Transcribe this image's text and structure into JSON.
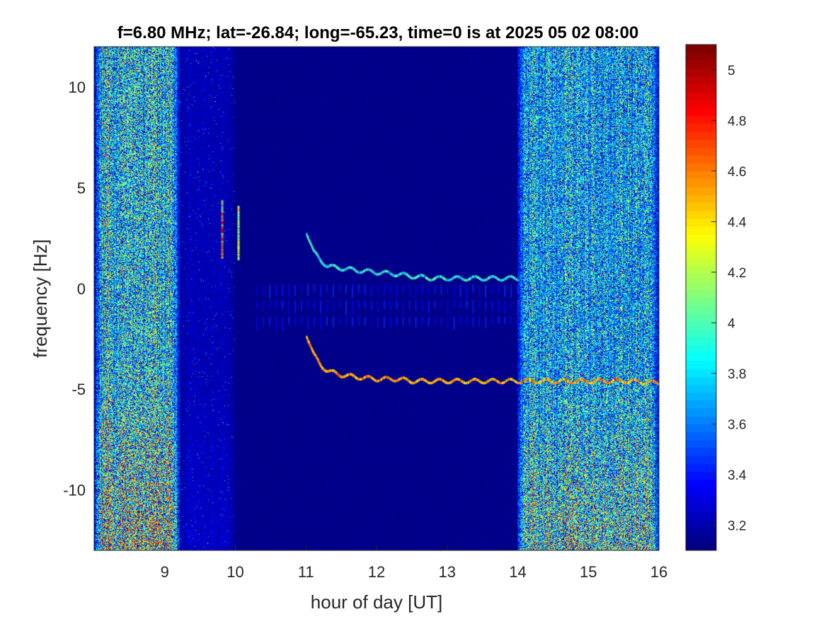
{
  "chart_data": {
    "type": "heatmap",
    "title": "f=6.80 MHz;  lat=-26.84; long=-65.23, time=0 is at 2025 05 02 08:00",
    "xlabel": "hour of day [UT]",
    "ylabel": "frequency [Hz]",
    "xlim": [
      8.0,
      16.0
    ],
    "ylim": [
      -13.0,
      12.0
    ],
    "x_ticks": [
      9,
      10,
      11,
      12,
      13,
      14,
      15,
      16
    ],
    "x_tick_labels": [
      "9",
      "10",
      "11",
      "12",
      "13",
      "14",
      "15",
      "16"
    ],
    "y_ticks": [
      10,
      5,
      0,
      -5,
      -10
    ],
    "y_tick_labels": [
      "10",
      "5",
      "0",
      "-5",
      "-10"
    ],
    "colormap": "jet",
    "clim": [
      3.1,
      5.1
    ],
    "colorbar_ticks": [
      5,
      4.8,
      4.6,
      4.4,
      4.2,
      4,
      3.8,
      3.6,
      3.4,
      3.2
    ],
    "colorbar_tick_labels": [
      "5",
      "4.8",
      "4.6",
      "4.4",
      "4.2",
      "4",
      "3.8",
      "3.6",
      "3.4",
      "3.2"
    ],
    "background_level": 3.12,
    "noise_regions": [
      {
        "x_start": 8.0,
        "x_end": 9.22,
        "level_mean": 3.55
      },
      {
        "x_start": 9.22,
        "x_end": 10.0,
        "level_mean": 3.18
      },
      {
        "x_start": 13.99,
        "x_end": 16.0,
        "level_mean": 3.5
      }
    ],
    "traces": [
      {
        "x": [
          11.0,
          11.1,
          11.2,
          11.3,
          11.5,
          11.7,
          12.0,
          12.3,
          12.5,
          12.8,
          13.0,
          13.3,
          13.6,
          14.0
        ],
        "y": [
          2.8,
          1.8,
          1.4,
          1.1,
          1.0,
          0.9,
          0.8,
          0.7,
          0.6,
          0.5,
          0.5,
          0.5,
          0.5,
          0.5
        ],
        "level": 3.85
      },
      {
        "x": [
          11.0,
          11.1,
          11.2,
          11.3,
          11.5,
          11.7,
          12.0,
          12.3,
          12.5,
          12.8,
          13.0,
          13.3,
          13.6,
          14.0,
          14.5,
          15.0,
          15.5,
          16.0
        ],
        "y": [
          -2.3,
          -3.3,
          -3.8,
          -4.1,
          -4.3,
          -4.4,
          -4.5,
          -4.5,
          -4.6,
          -4.6,
          -4.6,
          -4.6,
          -4.6,
          -4.6,
          -4.6,
          -4.6,
          -4.6,
          -4.7
        ],
        "level": 4.5
      }
    ],
    "impulses": [
      {
        "x": 9.8,
        "y_min": 1.5,
        "y_max": 4.4,
        "level": 4.6
      },
      {
        "x": 10.03,
        "y_min": 1.4,
        "y_max": 4.1,
        "level": 4.3
      }
    ]
  }
}
